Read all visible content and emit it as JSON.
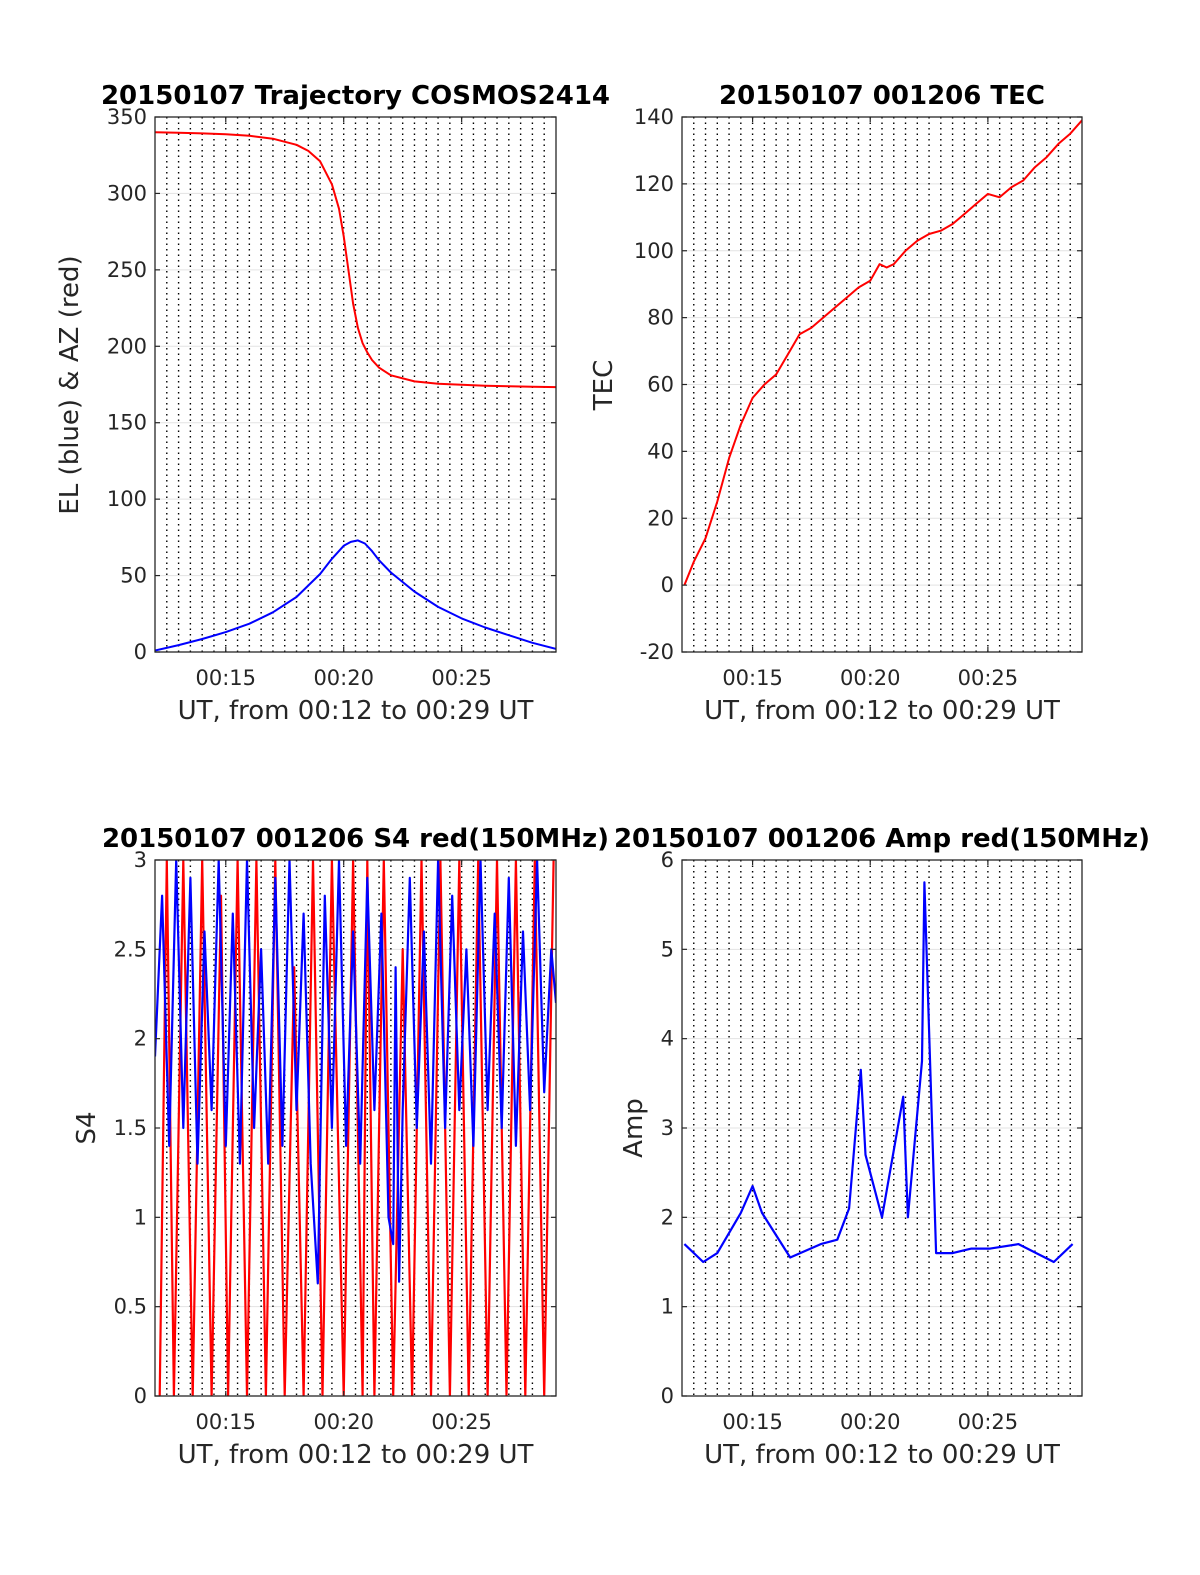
{
  "chart_data": [
    {
      "type": "line",
      "title": "20150107 Trajectory COSMOS2414",
      "xlabel": "UT, from 00:12 to 00:29 UT",
      "ylabel": "EL (blue) & AZ (red)",
      "x_unit": "minutes after 00:00 UT",
      "xlim": [
        12,
        29
      ],
      "ylim": [
        0,
        350
      ],
      "xticks": [
        15,
        20,
        25
      ],
      "xtick_labels": [
        "00:15",
        "00:20",
        "00:25"
      ],
      "yticks": [
        0,
        50,
        100,
        150,
        200,
        250,
        300,
        350
      ],
      "ytick_labels": [
        "0",
        "50",
        "100",
        "150",
        "200",
        "250",
        "300",
        "350"
      ],
      "grid": "dotted vertical lines every 0.5 min, solid horizontal gridlines",
      "series": [
        {
          "color": "#ff0000",
          "x": [
            12,
            13,
            14,
            15,
            16,
            17,
            18,
            18.5,
            19,
            19.5,
            19.8,
            20,
            20.2,
            20.4,
            20.6,
            20.8,
            21,
            21.2,
            21.5,
            22,
            23,
            24,
            25,
            26,
            27,
            28,
            29
          ],
          "values": [
            340,
            339.7,
            339.3,
            338.7,
            337.7,
            335.8,
            331.8,
            327.8,
            321,
            306,
            290,
            272,
            250,
            228,
            212,
            202,
            196,
            191,
            186,
            181,
            177,
            175.5,
            174.8,
            174.2,
            173.8,
            173.5,
            173.3
          ]
        },
        {
          "color": "#0000ff",
          "x": [
            12,
            13,
            14,
            15,
            16,
            17,
            18,
            19,
            19.5,
            20,
            20.3,
            20.6,
            20.9,
            21.2,
            21.5,
            22,
            23,
            24,
            25,
            26,
            27,
            28,
            29
          ],
          "values": [
            1,
            4.5,
            8.5,
            13,
            18.5,
            26,
            36,
            51,
            61,
            69.5,
            72,
            73,
            71,
            66,
            60,
            52,
            39.5,
            29.5,
            22,
            16,
            11,
            6,
            2
          ]
        }
      ]
    },
    {
      "type": "line",
      "title": "20150107 001206 TEC",
      "xlabel": "UT, from 00:12 to 00:29 UT",
      "ylabel": "TEC",
      "x_unit": "minutes after 00:00 UT",
      "xlim": [
        12,
        29
      ],
      "ylim": [
        -20,
        140
      ],
      "xticks": [
        15,
        20,
        25
      ],
      "xtick_labels": [
        "00:15",
        "00:20",
        "00:25"
      ],
      "yticks": [
        -20,
        0,
        20,
        40,
        60,
        80,
        100,
        120,
        140
      ],
      "ytick_labels": [
        "-20",
        "0",
        "20",
        "40",
        "60",
        "80",
        "100",
        "120",
        "140"
      ],
      "grid": "dotted vertical lines every 0.5 min, solid horizontal gridlines",
      "series": [
        {
          "color": "#ff0000",
          "x": [
            12.1,
            12.5,
            13,
            13.5,
            14,
            14.5,
            15,
            15.5,
            16,
            16.5,
            17,
            17.5,
            18,
            18.5,
            19,
            19.5,
            20,
            20.4,
            20.7,
            21,
            21.5,
            22,
            22.5,
            23,
            23.5,
            24,
            24.5,
            25,
            25.5,
            26,
            26.5,
            27,
            27.5,
            28,
            28.5,
            29
          ],
          "values": [
            0,
            7,
            14,
            25,
            38,
            48,
            56,
            60,
            63,
            69,
            75,
            77,
            80,
            83,
            86,
            89,
            91,
            96,
            95,
            96,
            100,
            103,
            105,
            106,
            108,
            111,
            114,
            117,
            116,
            119,
            121,
            125,
            128,
            132,
            135,
            139
          ]
        }
      ]
    },
    {
      "type": "line",
      "title": "20150107 001206 S4 red(150MHz)",
      "xlabel": "UT, from 00:12 to 00:29 UT",
      "ylabel": "S4",
      "x_unit": "minutes after 00:00 UT",
      "xlim": [
        12,
        29
      ],
      "ylim": [
        0,
        3
      ],
      "xticks": [
        15,
        20,
        25
      ],
      "xtick_labels": [
        "00:15",
        "00:20",
        "00:25"
      ],
      "yticks": [
        0,
        0.5,
        1,
        1.5,
        2,
        2.5,
        3
      ],
      "ytick_labels": [
        "0",
        "0.5",
        "1",
        "1.5",
        "2",
        "2.5",
        "3"
      ],
      "grid": "dotted vertical lines every 0.5 min, solid horizontal gridlines",
      "series": [
        {
          "color": "#ff0000",
          "x": [
            12.2,
            12.5,
            12.8,
            13.2,
            13.6,
            14.0,
            14.4,
            14.8,
            15.1,
            15.5,
            15.9,
            16.3,
            16.7,
            17.1,
            17.5,
            17.9,
            18.3,
            18.7,
            19.1,
            19.5,
            20.0,
            20.4,
            20.8,
            21.0,
            21.3,
            21.7,
            22.1,
            22.5,
            22.9,
            23.3,
            23.7,
            24.1,
            24.5,
            24.9,
            25.3,
            25.7,
            26.1,
            26.5,
            26.9,
            27.3,
            27.7,
            28.1,
            28.5,
            28.9
          ],
          "values": [
            0,
            3,
            0,
            3,
            0,
            3,
            0,
            2.8,
            0,
            3,
            0,
            3,
            0,
            3,
            0,
            2.4,
            0,
            3,
            0,
            3,
            0,
            3,
            0,
            3,
            0,
            3,
            0,
            2.5,
            0,
            3,
            0,
            3,
            0,
            3,
            0,
            3,
            0,
            3,
            0,
            3,
            0,
            3,
            0,
            3
          ]
        },
        {
          "color": "#0000ff",
          "x": [
            12,
            12.3,
            12.6,
            12.9,
            13.2,
            13.5,
            13.8,
            14.1,
            14.4,
            14.7,
            15.0,
            15.3,
            15.6,
            15.9,
            16.2,
            16.5,
            16.8,
            17.1,
            17.4,
            17.7,
            18.0,
            18.3,
            18.6,
            18.9,
            19.2,
            19.5,
            19.8,
            20.1,
            20.4,
            20.7,
            21.0,
            21.3,
            21.6,
            21.9,
            22.1,
            22.2,
            22.35,
            22.5,
            22.8,
            23.1,
            23.4,
            23.7,
            24.0,
            24.3,
            24.6,
            24.9,
            25.2,
            25.5,
            25.8,
            26.1,
            26.4,
            26.7,
            27.0,
            27.3,
            27.6,
            27.9,
            28.2,
            28.5,
            28.8,
            29
          ],
          "values": [
            1.9,
            2.8,
            1.4,
            3,
            1.5,
            2.9,
            1.3,
            2.6,
            1.6,
            3,
            1.4,
            2.7,
            1.3,
            3,
            1.5,
            2.5,
            1.3,
            2.9,
            1.4,
            3,
            1.6,
            2.7,
            1.3,
            0.63,
            2.8,
            1.5,
            3,
            1.4,
            2.6,
            1.3,
            2.9,
            1.6,
            2.7,
            1.0,
            0.85,
            2.4,
            0.64,
            1.6,
            2.9,
            1.5,
            2.6,
            1.3,
            3,
            1.5,
            2.8,
            1.6,
            2.5,
            1.4,
            3,
            1.6,
            2.7,
            1.5,
            2.9,
            1.4,
            2.6,
            1.6,
            3,
            1.7,
            2.5,
            2.2
          ]
        }
      ]
    },
    {
      "type": "line",
      "title": "20150107 001206 Amp red(150MHz)",
      "xlabel": "UT, from 00:12 to 00:29 UT",
      "ylabel": "Amp",
      "x_unit": "minutes after 00:00 UT",
      "xlim": [
        12,
        29
      ],
      "ylim": [
        0,
        6
      ],
      "xticks": [
        15,
        20,
        25
      ],
      "xtick_labels": [
        "00:15",
        "00:20",
        "00:25"
      ],
      "yticks": [
        0,
        1,
        2,
        3,
        4,
        5,
        6
      ],
      "ytick_labels": [
        "0",
        "1",
        "2",
        "3",
        "4",
        "5",
        "6"
      ],
      "grid": "dotted vertical lines every 0.5 min, solid horizontal gridlines",
      "series": [
        {
          "color": "#0000ff",
          "x": [
            12.1,
            12.9,
            13.5,
            14.5,
            15.0,
            15.4,
            16.6,
            17.9,
            18.6,
            19.1,
            19.6,
            19.8,
            20.5,
            21.4,
            21.6,
            22.2,
            22.3,
            22.8,
            23.5,
            24.3,
            25.1,
            26.3,
            27.8,
            28.6
          ],
          "values": [
            1.7,
            1.5,
            1.6,
            2.05,
            2.35,
            2.05,
            1.55,
            1.7,
            1.75,
            2.1,
            3.65,
            2.7,
            2.0,
            3.35,
            2.0,
            3.75,
            5.75,
            1.6,
            1.6,
            1.65,
            1.65,
            1.7,
            1.5,
            1.7
          ]
        }
      ]
    }
  ]
}
